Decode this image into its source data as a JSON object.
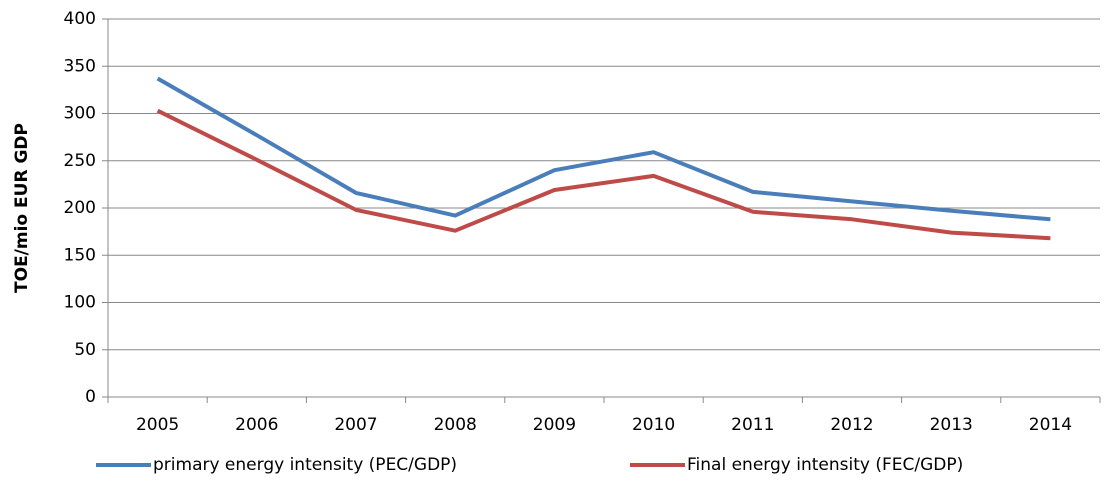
{
  "chart_data": {
    "type": "line",
    "y_label": "TOE/mio EUR GDP",
    "categories": [
      "2005",
      "2006",
      "2007",
      "2008",
      "2009",
      "2010",
      "2011",
      "2012",
      "2013",
      "2014"
    ],
    "series": [
      {
        "name": "primary energy intensity (PEC/GDP)",
        "color": "#4a7ebb",
        "values": [
          337,
          277,
          216,
          192,
          240,
          259,
          217,
          207,
          197,
          188
        ]
      },
      {
        "name": "Final energy intensity (FEC/GDP)",
        "color": "#be4b48",
        "values": [
          303,
          251,
          198,
          176,
          219,
          234,
          196,
          188,
          174,
          168
        ]
      }
    ],
    "ylim": [
      0,
      400
    ],
    "yticks": [
      0,
      50,
      100,
      150,
      200,
      250,
      300,
      350,
      400
    ],
    "grid": true,
    "legend": "bottom"
  }
}
